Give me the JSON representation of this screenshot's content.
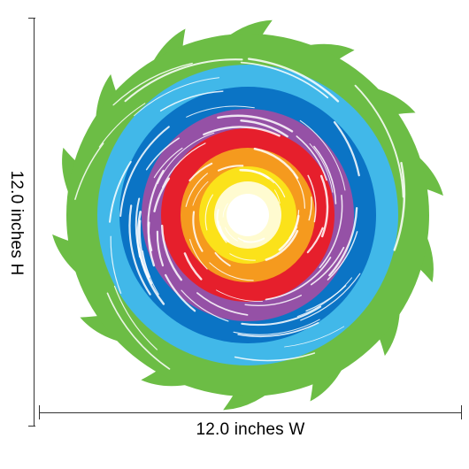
{
  "dimensions": {
    "height_label": "12.0 inches H",
    "width_label": "12.0 inches W"
  },
  "artwork": {
    "subject": "rainbow-swirl-decal",
    "ring_colors": [
      "#6cbd45",
      "#41b8e9",
      "#0b74c5",
      "#9551a6",
      "#e61f2c",
      "#f59a1e",
      "#fbe21a",
      "#fffbd0"
    ]
  }
}
